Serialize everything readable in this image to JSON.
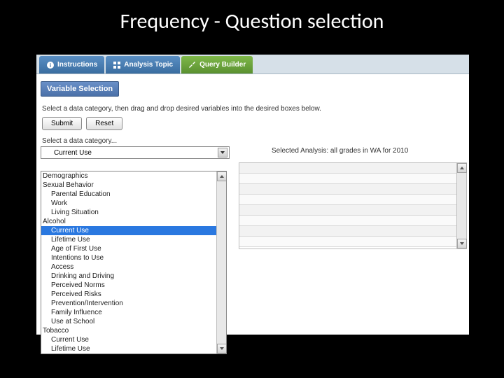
{
  "slide": {
    "title": "Frequency - Question selection"
  },
  "tabs": {
    "instructions": "Instructions",
    "analysis_topic": "Analysis Topic",
    "query_builder": "Query Builder"
  },
  "section": {
    "header": "Variable Selection"
  },
  "instruction": "Select a data category, then drag and drop desired variables into the desired boxes below.",
  "buttons": {
    "submit": "Submit",
    "reset": "Reset"
  },
  "select": {
    "label": "Select a data category...",
    "value": "Current Use"
  },
  "selected_analysis": "Selected Analysis: all grades in WA for 2010",
  "dropdown": {
    "groups": [
      {
        "label": "Demographics",
        "items": []
      },
      {
        "label": "Sexual Behavior",
        "items": [
          "Parental Education",
          "Work",
          "Living Situation"
        ]
      },
      {
        "label": "Alcohol",
        "items": [
          "Current Use",
          "Lifetime Use",
          "Age of First Use",
          "Intentions to Use",
          "Access",
          "Drinking and Driving",
          "Perceived Norms",
          "Perceived Risks",
          "Prevention/Intervention",
          "Family Influence",
          "Use at School"
        ]
      },
      {
        "label": "Tobacco",
        "items": [
          "Current Use",
          "Lifetime Use"
        ]
      }
    ],
    "selected": "Current Use",
    "selected_group": "Alcohol"
  },
  "colors": {
    "background": "#000000",
    "panel": "#ffffff",
    "tab_blue": "#4a7ab0",
    "tab_green": "#6aa03a",
    "highlight": "#2a78e0"
  }
}
